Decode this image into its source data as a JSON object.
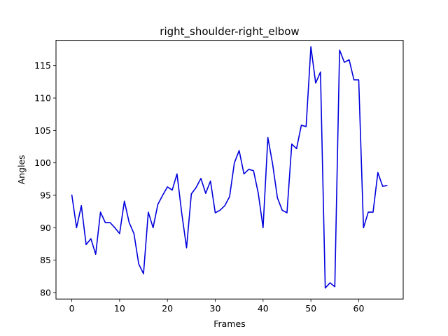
{
  "chart_data": {
    "type": "line",
    "title": "right_shoulder-right_elbow",
    "xlabel": "Frames",
    "ylabel": "Angles",
    "xlim": [
      -3.3,
      69.3
    ],
    "ylim": [
      79.0,
      118.9
    ],
    "xticks": [
      0,
      10,
      20,
      30,
      40,
      50,
      60
    ],
    "yticks": [
      80,
      85,
      90,
      95,
      100,
      105,
      110,
      115
    ],
    "grid": false,
    "legend": "none",
    "series": [
      {
        "color": "#0000dd",
        "x": [
          0,
          1,
          2,
          3,
          4,
          5,
          6,
          7,
          8,
          9,
          10,
          11,
          12,
          13,
          14,
          15,
          16,
          17,
          18,
          19,
          20,
          21,
          22,
          23,
          24,
          25,
          26,
          27,
          28,
          29,
          30,
          31,
          32,
          33,
          34,
          35,
          36,
          37,
          38,
          39,
          40,
          41,
          42,
          43,
          44,
          45,
          46,
          47,
          48,
          49,
          50,
          51,
          52,
          53,
          54,
          55,
          56,
          57,
          58,
          59,
          60,
          61,
          62,
          63,
          64,
          65,
          66
        ],
        "values": [
          95.1,
          90.0,
          93.4,
          87.4,
          88.3,
          85.9,
          92.4,
          90.8,
          90.8,
          90.0,
          89.1,
          94.1,
          90.8,
          89.1,
          84.4,
          82.9,
          92.4,
          90.0,
          93.6,
          95.0,
          96.3,
          95.8,
          98.3,
          92.2,
          86.9,
          95.2,
          96.2,
          97.6,
          95.3,
          97.2,
          92.3,
          92.7,
          93.4,
          94.8,
          100.0,
          101.9,
          98.3,
          99.0,
          98.8,
          95.3,
          90.0,
          103.9,
          99.8,
          94.6,
          92.7,
          92.3,
          102.9,
          102.2,
          105.8,
          105.6,
          117.9,
          112.3,
          114.0,
          80.7,
          81.5,
          80.9,
          117.4,
          115.5,
          115.9,
          112.8,
          112.8,
          90.0,
          92.4,
          92.4,
          98.5,
          96.4,
          96.5
        ]
      }
    ]
  }
}
